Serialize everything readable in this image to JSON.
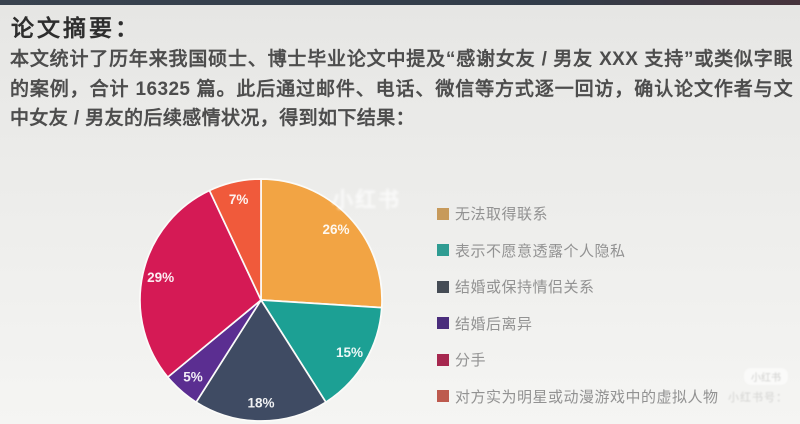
{
  "page": {
    "title": "论文摘要：",
    "abstract": "本文统计了历年来我国硕士、博士毕业论文中提及“感谢女友 / 男友 XXX 支持”或类似字眼的案例，合计 16325 篇。此后通过邮件、电话、微信等方式逐一回访，确认论文作者与文中女友 / 男友的后续感情状况，得到如下结果："
  },
  "chart_data": {
    "type": "pie",
    "title": "",
    "total_cases": "16325",
    "start_angle_deg": 0,
    "direction": "clockwise",
    "legend_position": "right",
    "slice_label_color": "#FFFFFF",
    "separator_color": "#fbfbf9",
    "series": [
      {
        "label": "无法取得联系",
        "value": 26,
        "display": "26%",
        "color": "#F2A444"
      },
      {
        "label": "表示不愿意透露个人隐私",
        "value": 15,
        "display": "15%",
        "color": "#1CA094"
      },
      {
        "label": "结婚或保持情侣关系",
        "value": 18,
        "display": "18%",
        "color": "#3F4B63"
      },
      {
        "label": "结婚后离异",
        "value": 5,
        "display": "5%",
        "color": "#5B2E91"
      },
      {
        "label": "分手",
        "value": 29,
        "display": "29%",
        "color": "#D51A55"
      },
      {
        "label": "对方实为明星或动漫游戏中的虚拟人物",
        "value": 7,
        "display": "7%",
        "color": "#F05A3B"
      }
    ]
  },
  "legend": {
    "items": [
      {
        "label": "无法取得联系",
        "color": "#C79A5B"
      },
      {
        "label": "表示不愿意透露个人隐私",
        "color": "#2F9C92"
      },
      {
        "label": "结婚或保持情侣关系",
        "color": "#454c55"
      },
      {
        "label": "结婚后离异",
        "color": "#4A2D7C"
      },
      {
        "label": "分手",
        "color": "#A6284F"
      },
      {
        "label": "对方实为明星或动漫游戏中的虚拟人物",
        "color": "#BD5A4E"
      }
    ]
  },
  "watermark": {
    "center": "小红书",
    "badge": "小红书",
    "corner": "小红书号："
  }
}
